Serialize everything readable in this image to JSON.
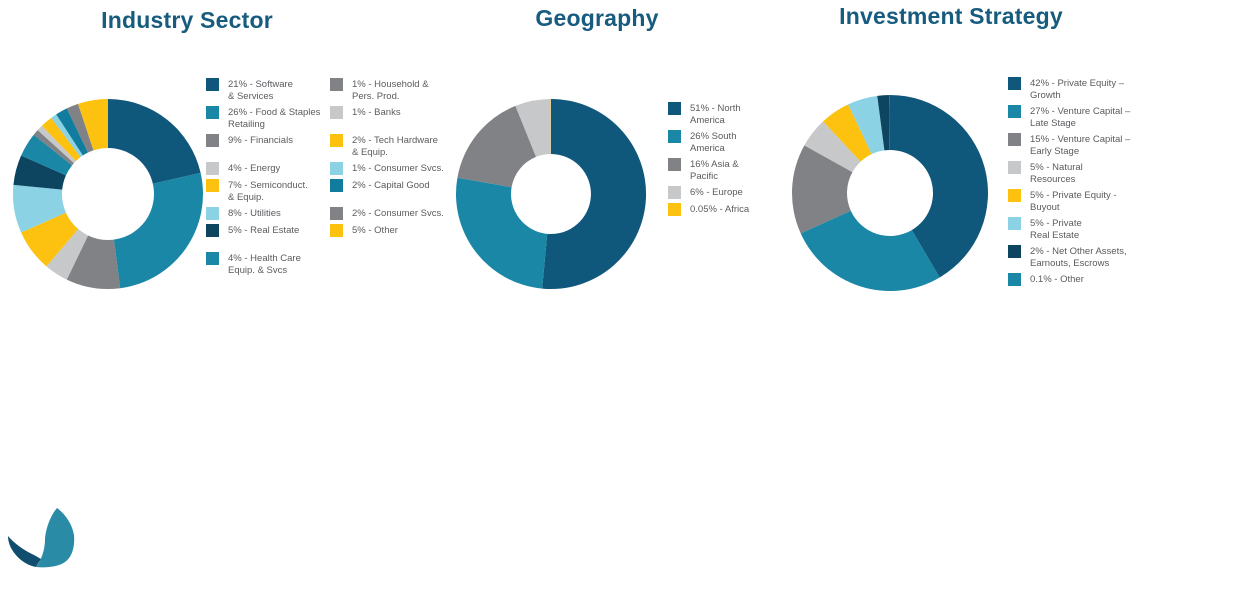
{
  "page": {
    "background": "#FFFFFF"
  },
  "palette": {
    "title_blue": "#175B7E",
    "legend_text": "#5A5B5E",
    "dark_blue": "#10587B",
    "teal": "#1A87A6",
    "dark_teal": "#117C9D",
    "navy": "#0D4560",
    "gray": "#808285",
    "light_gray": "#C7C8CA",
    "yellow": "#FDC110",
    "light_blue": "#8BD2E5"
  },
  "chart_data": [
    {
      "id": "industry",
      "type": "pie",
      "subtype": "donut",
      "title": "Industry Sector",
      "legend_position": "right",
      "legend_columns": 2,
      "slices": [
        {
          "name": "Software & Services",
          "value": 21,
          "label": "21% - Software\n& Services",
          "color": "#10587B"
        },
        {
          "name": "Food & Staples Retailing",
          "value": 26,
          "label": "26% - Food & Staples\nRetailing",
          "color": "#1A87A6"
        },
        {
          "name": "Financials",
          "value": 9,
          "label": "9% - Financials",
          "color": "#808285"
        },
        {
          "name": "Energy",
          "value": 4,
          "label": "4% - Energy",
          "color": "#C7C8CA"
        },
        {
          "name": "Semiconductors & Equipment",
          "value": 7,
          "label": "7% - Semiconduct.\n& Equip.",
          "color": "#FDC110"
        },
        {
          "name": "Utilities",
          "value": 8,
          "label": "8% - Utilities",
          "color": "#8BD2E5"
        },
        {
          "name": "Real Estate",
          "value": 5,
          "label": "5% - Real Estate",
          "color": "#0D4560"
        },
        {
          "name": "Health Care Equip. & Svcs",
          "value": 4,
          "label": "4% - Health Care\nEquip. & Svcs",
          "color": "#1A87A6"
        },
        {
          "name": "Household & Pers. Prod.",
          "value": 1,
          "label": "1% - Household &\nPers. Prod.",
          "color": "#808285"
        },
        {
          "name": "Banks",
          "value": 1,
          "label": "1% - Banks",
          "color": "#C7C8CA"
        },
        {
          "name": "Tech Hardware & Equip.",
          "value": 2,
          "label": "2% - Tech Hardware\n& Equip.",
          "color": "#FDC110"
        },
        {
          "name": "Consumer Svcs.",
          "value": 1,
          "label": "1% - Consumer Svcs.",
          "color": "#8BD2E5"
        },
        {
          "name": "Capital Good",
          "value": 2,
          "label": "2% - Capital Good",
          "color": "#117C9D"
        },
        {
          "name": "Consumer Svcs.",
          "value": 2,
          "label": "2% - Consumer Svcs.",
          "color": "#808285"
        },
        {
          "name": "Other",
          "value": 5,
          "label": "5% - Other",
          "color": "#FDC110"
        }
      ]
    },
    {
      "id": "geography",
      "type": "pie",
      "subtype": "donut",
      "title": "Geography",
      "legend_position": "right",
      "legend_columns": 1,
      "slices": [
        {
          "name": "North America",
          "value": 51,
          "label": "51% - North\nAmerica",
          "color": "#10587B"
        },
        {
          "name": "South America",
          "value": 26,
          "label": "26% South\nAmerica",
          "color": "#1A87A6"
        },
        {
          "name": "Asia & Pacific",
          "value": 16,
          "label": "16% Asia &\nPacific",
          "color": "#808285"
        },
        {
          "name": "Europe",
          "value": 6,
          "label": "6% - Europe",
          "color": "#C7C8CA"
        },
        {
          "name": "Africa",
          "value": 0.05,
          "label": "0.05% - Africa",
          "color": "#FDC110"
        }
      ]
    },
    {
      "id": "investment",
      "type": "pie",
      "subtype": "donut",
      "title": "Investment Strategy",
      "legend_position": "right",
      "legend_columns": 1,
      "slices": [
        {
          "name": "Private Equity – Growth",
          "value": 42,
          "label": "42% - Private Equity –\nGrowth",
          "color": "#10587B"
        },
        {
          "name": "Venture Capital – Late Stage",
          "value": 27,
          "label": "27% - Venture Capital –\nLate Stage",
          "color": "#1A87A6"
        },
        {
          "name": "Venture Capital – Early Stage",
          "value": 15,
          "label": "15% - Venture Capital –\nEarly Stage",
          "color": "#808285"
        },
        {
          "name": "Natural Resources",
          "value": 5,
          "label": "5% - Natural\nResources",
          "color": "#C7C8CA"
        },
        {
          "name": "Private Equity - Buyout",
          "value": 5,
          "label": "5% - Private Equity -\nBuyout",
          "color": "#FDC110"
        },
        {
          "name": "Private Real Estate",
          "value": 5,
          "label": "5% - Private\nReal Estate",
          "color": "#8BD2E5"
        },
        {
          "name": "Net Other Assets, Earnouts, Escrows",
          "value": 2,
          "label": "2% - Net Other Assets,\nEarnouts, Escrows",
          "color": "#0D4560"
        },
        {
          "name": "Other",
          "value": 0.1,
          "label": "0.1% - Other",
          "color": "#1A87A6"
        }
      ]
    }
  ],
  "logo": {
    "name": "ribbon-logo",
    "colors": {
      "teal": "#2A8BA7",
      "dark_blue": "#114D6E"
    }
  }
}
